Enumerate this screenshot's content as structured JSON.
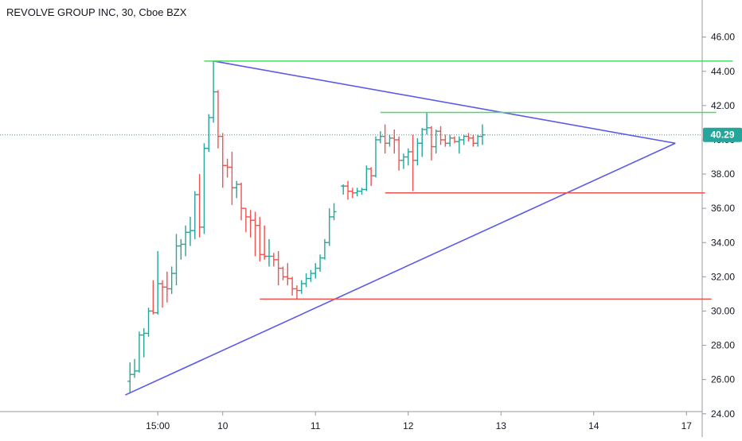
{
  "chart_data": {
    "type": "ohlc",
    "title": "REVOLVE GROUP INC, 30, Cboe BZX",
    "last_price": "40.29",
    "ylim": [
      23.2,
      47.0
    ],
    "y_ticks": [
      "46.00",
      "44.00",
      "42.00",
      "40.00",
      "38.00",
      "36.00",
      "34.00",
      "32.00",
      "30.00",
      "28.00",
      "26.00",
      "24.00"
    ],
    "y_tick_values": [
      46,
      44,
      42,
      40,
      38,
      36,
      34,
      32,
      30,
      28,
      26,
      24
    ],
    "x_ticks": [
      "15:00",
      "10",
      "11",
      "12",
      "13",
      "14",
      "17"
    ],
    "x_tick_slots": [
      3,
      10,
      20,
      30,
      40,
      50,
      60
    ],
    "xlim": [
      -5,
      65
    ],
    "colors": {
      "up": "#26a69a",
      "down": "#ef5350",
      "triangle": "#5b5be8",
      "resistance": "#4cd964",
      "support": "#ef5350",
      "price_line": "#26a69a"
    },
    "bars": [
      [
        0,
        25.9,
        27.0,
        25.2,
        26.3
      ],
      [
        0.5,
        26.3,
        27.2,
        26.1,
        26.5
      ],
      [
        1,
        26.5,
        28.8,
        26.4,
        28.6
      ],
      [
        1.5,
        28.6,
        29.0,
        27.3,
        28.7
      ],
      [
        2,
        28.7,
        30.2,
        28.5,
        30.0
      ],
      [
        2.5,
        30.0,
        31.8,
        29.8,
        29.9
      ],
      [
        3,
        29.9,
        33.5,
        29.8,
        31.6
      ],
      [
        3.5,
        31.6,
        31.8,
        30.2,
        31.4
      ],
      [
        4,
        31.4,
        32.3,
        30.5,
        31.3
      ],
      [
        4.5,
        31.3,
        32.6,
        31.0,
        32.2
      ],
      [
        5,
        32.2,
        34.5,
        31.5,
        33.8
      ],
      [
        5.5,
        33.8,
        34.2,
        33.0,
        33.9
      ],
      [
        6,
        33.9,
        35.0,
        33.2,
        34.6
      ],
      [
        6.5,
        34.6,
        35.5,
        33.8,
        34.7
      ],
      [
        7,
        34.7,
        37.0,
        34.2,
        36.8
      ],
      [
        7.5,
        36.8,
        38.0,
        34.3,
        34.9
      ],
      [
        8,
        34.9,
        39.8,
        34.5,
        39.5
      ],
      [
        8.5,
        39.5,
        41.5,
        39.3,
        41.3
      ],
      [
        9,
        41.3,
        44.6,
        41.0,
        42.8
      ],
      [
        9.5,
        42.8,
        42.9,
        39.5,
        40.2
      ],
      [
        10,
        40.2,
        40.4,
        37.2,
        38.5
      ],
      [
        10.5,
        38.5,
        38.9,
        37.8,
        38.4
      ],
      [
        11,
        38.4,
        39.3,
        36.2,
        37.2
      ],
      [
        11.5,
        37.2,
        37.6,
        36.6,
        37.4
      ],
      [
        12,
        37.4,
        37.5,
        35.3,
        36.0
      ],
      [
        12.5,
        36.0,
        36.0,
        34.6,
        35.5
      ],
      [
        13,
        35.5,
        35.9,
        34.3,
        35.3
      ],
      [
        13.5,
        35.3,
        35.8,
        33.2,
        35.0
      ],
      [
        14,
        35.0,
        35.5,
        32.9,
        33.3
      ],
      [
        14.5,
        33.3,
        35.0,
        33.0,
        33.2
      ],
      [
        15,
        33.2,
        34.2,
        32.6,
        33.2
      ],
      [
        15.5,
        33.2,
        33.4,
        32.6,
        33.0
      ],
      [
        16,
        33.0,
        33.5,
        31.5,
        32.5
      ],
      [
        16.5,
        32.5,
        32.6,
        31.8,
        32.0
      ],
      [
        17,
        32.0,
        32.8,
        31.5,
        31.9
      ],
      [
        17.5,
        31.9,
        32.0,
        30.9,
        31.3
      ],
      [
        18,
        31.3,
        31.5,
        30.7,
        31.2
      ],
      [
        18.5,
        31.2,
        31.8,
        31.0,
        31.6
      ],
      [
        19,
        31.6,
        32.2,
        31.4,
        31.9
      ],
      [
        19.5,
        31.9,
        32.4,
        31.7,
        32.2
      ],
      [
        20,
        32.2,
        32.8,
        31.9,
        32.5
      ],
      [
        20.5,
        32.5,
        33.3,
        32.3,
        33.1
      ],
      [
        21,
        33.1,
        34.2,
        33.0,
        34.0
      ],
      [
        21.5,
        34.0,
        36.0,
        33.8,
        35.5
      ],
      [
        22,
        35.5,
        36.3,
        35.3,
        35.8
      ],
      [
        23,
        37.3,
        37.4,
        36.8,
        37.3
      ],
      [
        23.5,
        37.3,
        37.6,
        36.5,
        37.0
      ],
      [
        24,
        37.0,
        37.2,
        36.6,
        36.9
      ],
      [
        24.5,
        36.9,
        37.2,
        36.7,
        37.0
      ],
      [
        25,
        37.0,
        37.2,
        36.8,
        37.1
      ],
      [
        25.5,
        37.1,
        38.5,
        37.0,
        38.3
      ],
      [
        26,
        38.3,
        38.4,
        37.3,
        37.9
      ],
      [
        26.5,
        37.9,
        40.2,
        37.8,
        40.0
      ],
      [
        27,
        40.0,
        40.5,
        39.8,
        40.2
      ],
      [
        27.5,
        40.2,
        40.9,
        39.2,
        39.8
      ],
      [
        28,
        39.8,
        40.3,
        39.6,
        40.1
      ],
      [
        28.5,
        40.1,
        40.6,
        39.2,
        40.0
      ],
      [
        29,
        40.0,
        40.2,
        38.2,
        38.8
      ],
      [
        29.5,
        38.8,
        39.2,
        38.3,
        39.0
      ],
      [
        30,
        39.0,
        39.5,
        38.5,
        39.3
      ],
      [
        30.5,
        39.3,
        40.3,
        37.0,
        38.8
      ],
      [
        31,
        38.8,
        40.1,
        38.5,
        39.8
      ],
      [
        31.5,
        39.8,
        40.7,
        39.0,
        40.6
      ],
      [
        32,
        40.6,
        41.6,
        40.3,
        40.7
      ],
      [
        32.5,
        40.7,
        40.8,
        38.8,
        39.6
      ],
      [
        33,
        39.6,
        40.6,
        39.2,
        40.5
      ],
      [
        33.5,
        40.5,
        40.8,
        39.7,
        40.0
      ],
      [
        34,
        40.0,
        40.3,
        39.6,
        39.8
      ],
      [
        34.5,
        39.8,
        40.3,
        39.6,
        40.1
      ],
      [
        35,
        40.1,
        40.2,
        39.8,
        39.9
      ],
      [
        35.5,
        39.9,
        40.2,
        39.2,
        40.0
      ],
      [
        36,
        40.0,
        40.3,
        39.7,
        40.2
      ],
      [
        36.5,
        40.2,
        40.4,
        39.9,
        40.1
      ],
      [
        37,
        40.1,
        40.3,
        39.6,
        39.8
      ],
      [
        37.5,
        39.8,
        40.3,
        39.6,
        40.2
      ],
      [
        38,
        40.2,
        40.9,
        39.7,
        40.29
      ]
    ]
  }
}
